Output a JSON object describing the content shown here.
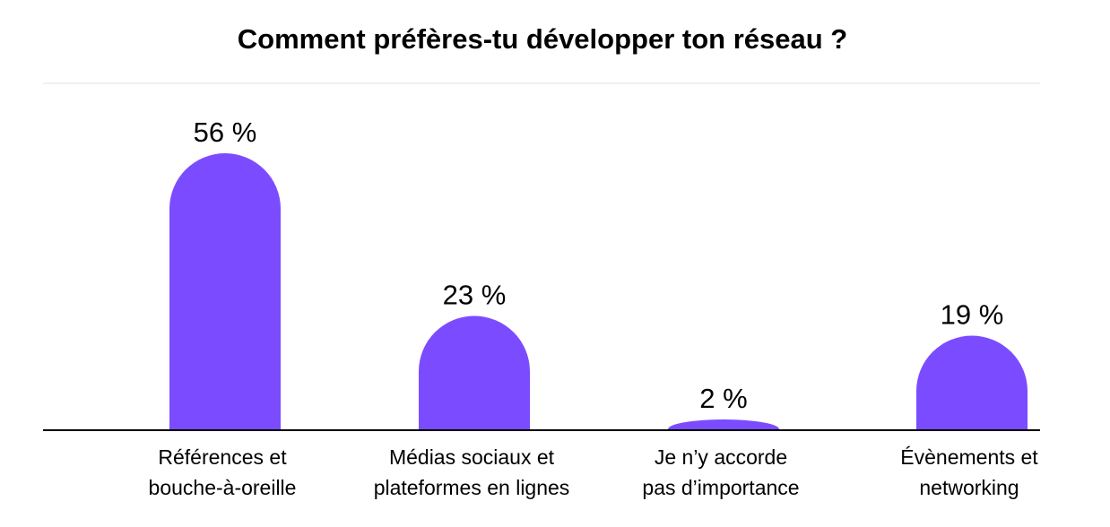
{
  "chart_data": {
    "type": "bar",
    "title": "Comment préfères-tu développer ton réseau ?",
    "categories": [
      [
        "Références et",
        "bouche-à-oreille"
      ],
      [
        "Médias sociaux et",
        "plateformes en lignes"
      ],
      [
        "Je n’y accorde",
        "pas d’importance"
      ],
      [
        "Évènements et",
        "networking"
      ]
    ],
    "values": [
      56,
      23,
      2,
      19
    ],
    "value_labels": [
      "56 %",
      "23 %",
      "2 %",
      "19 %"
    ],
    "unit": "%",
    "bar_color": "#7b4cff",
    "xlabel": "",
    "ylabel": "",
    "grid": false,
    "legend": "none"
  }
}
